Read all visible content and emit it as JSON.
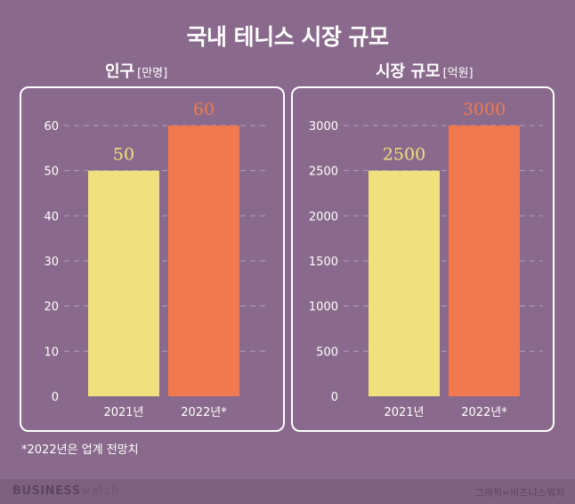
{
  "title": "국내 테니스 시장 규모",
  "footnote": "*2022년은 업계 전망치",
  "footer": {
    "brand_bold": "BUSINESS",
    "brand_light": "watch",
    "credit": "그래픽=비즈니스워치"
  },
  "colors": {
    "bar_2021": "#f0e17e",
    "bar_2022": "#f07a4e",
    "background": "#8a6a8c",
    "grid": "#b69db7"
  },
  "chart_data": [
    {
      "type": "bar",
      "title": "인구",
      "unit": "[만명]",
      "categories": [
        "2021년",
        "2022년*"
      ],
      "values": [
        50,
        60
      ],
      "data_labels": [
        "50",
        "60"
      ],
      "yticks": [
        0,
        10,
        20,
        30,
        40,
        50,
        60
      ],
      "ylim": [
        0,
        60
      ],
      "grid": true
    },
    {
      "type": "bar",
      "title": "시장 규모",
      "unit": "[억원]",
      "categories": [
        "2021년",
        "2022년*"
      ],
      "values": [
        2500,
        3000
      ],
      "data_labels": [
        "2500",
        "3000"
      ],
      "yticks": [
        0,
        500,
        1000,
        1500,
        2000,
        2500,
        3000
      ],
      "ylim": [
        0,
        3000
      ],
      "grid": true
    }
  ]
}
